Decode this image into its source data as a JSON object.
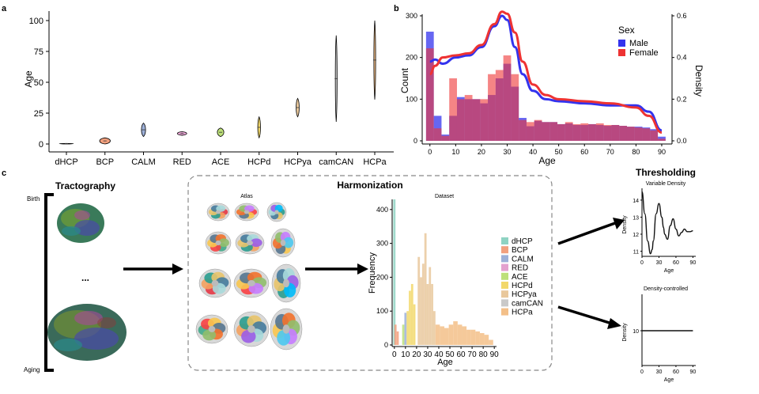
{
  "panels": {
    "a": {
      "label": "a",
      "chart_data": {
        "type": "violin",
        "ylabel": "Age",
        "ylim": [
          0,
          100
        ],
        "yticks": [
          0,
          25,
          50,
          75,
          100
        ],
        "categories": [
          "dHCP",
          "BCP",
          "CALM",
          "RED",
          "ACE",
          "HCPd",
          "HCPya",
          "camCAN",
          "HCPa"
        ],
        "ranges": [
          [
            0,
            0.5
          ],
          [
            0,
            5
          ],
          [
            6,
            17
          ],
          [
            7,
            10
          ],
          [
            6,
            13
          ],
          [
            5,
            22
          ],
          [
            22,
            37
          ],
          [
            18,
            88
          ],
          [
            36,
            100
          ]
        ],
        "colors": [
          "#8fd3c3",
          "#f2a07e",
          "#9db0d8",
          "#e3a1cf",
          "#bde07a",
          "#f2d86b",
          "#e9c89c",
          "#c9c9c9",
          "#f3bf88"
        ]
      }
    },
    "b": {
      "label": "b",
      "chart_data": {
        "type": "histogram+density",
        "xlabel": "Age",
        "ylabel": "Count",
        "ylabel_right": "Density",
        "xticks": [
          0,
          10,
          20,
          30,
          40,
          50,
          60,
          70,
          80,
          90
        ],
        "yticks_left": [
          0,
          100,
          200,
          300
        ],
        "yticks_right": [
          "0.0",
          "0.2",
          "0.4",
          "0.6"
        ],
        "xlim": [
          -3,
          94
        ],
        "ylim": [
          0,
          300
        ],
        "ylim_right": [
          0,
          0.6
        ],
        "legend_title": "Sex",
        "series": [
          {
            "name": "Male",
            "color": "#3333ee",
            "bins_x": [
              0,
              3,
              6,
              9,
              12,
              15,
              18,
              21,
              24,
              27,
              30,
              33,
              36,
              39,
              42,
              45,
              48,
              51,
              54,
              57,
              60,
              63,
              66,
              69,
              72,
              75,
              78,
              81,
              84,
              87,
              90
            ],
            "counts": [
              262,
              60,
              15,
              60,
              105,
              100,
              100,
              90,
              110,
              150,
              185,
              130,
              55,
              35,
              48,
              45,
              45,
              40,
              42,
              38,
              38,
              40,
              38,
              36,
              38,
              36,
              34,
              34,
              32,
              28,
              10
            ],
            "density_x": [
              0,
              2,
              5,
              10,
              15,
              20,
              25,
              28,
              30,
              33,
              36,
              40,
              45,
              50,
              60,
              70,
              80,
              85,
              90
            ],
            "density_y": [
              0.38,
              0.39,
              0.37,
              0.4,
              0.41,
              0.45,
              0.55,
              0.6,
              0.58,
              0.45,
              0.32,
              0.24,
              0.2,
              0.19,
              0.18,
              0.17,
              0.17,
              0.14,
              0.05
            ]
          },
          {
            "name": "Female",
            "color": "#ee3333",
            "bins_x": [
              0,
              3,
              6,
              9,
              12,
              15,
              18,
              21,
              24,
              27,
              30,
              33,
              36,
              39,
              42,
              45,
              48,
              51,
              54,
              57,
              60,
              63,
              66,
              69,
              72,
              75,
              78,
              81,
              84,
              87,
              90
            ],
            "counts": [
              222,
              30,
              12,
              150,
              100,
              110,
              100,
              100,
              160,
              170,
              205,
              160,
              50,
              45,
              50,
              45,
              45,
              40,
              45,
              40,
              42,
              40,
              42,
              38,
              38,
              36,
              34,
              32,
              30,
              25,
              5
            ],
            "density_x": [
              0,
              2,
              5,
              10,
              15,
              20,
              25,
              28,
              30,
              33,
              36,
              40,
              45,
              50,
              60,
              70,
              80,
              85,
              90
            ],
            "density_y": [
              0.32,
              0.36,
              0.4,
              0.41,
              0.42,
              0.46,
              0.56,
              0.62,
              0.61,
              0.52,
              0.38,
              0.27,
              0.22,
              0.2,
              0.19,
              0.18,
              0.16,
              0.12,
              0.04
            ]
          }
        ]
      }
    },
    "c": {
      "label": "c",
      "tractography_title": "Tractography",
      "birth_label": "Birth",
      "aging_label": "Aging",
      "ellipsis": "...",
      "harmonization_title": "Harmonization",
      "atlas_label": "Atlas",
      "dataset_chart": {
        "type": "histogram",
        "title": "Dataset",
        "xlabel": "Age",
        "ylabel": "Frequency",
        "xticks": [
          0,
          10,
          20,
          30,
          40,
          50,
          60,
          70,
          80,
          90
        ],
        "yticks": [
          0,
          100,
          200,
          300,
          400
        ],
        "xlim": [
          -2,
          92
        ],
        "ylim": [
          0,
          430
        ],
        "legend": [
          "dHCP",
          "BCP",
          "CALM",
          "RED",
          "ACE",
          "HCPd",
          "HCPya",
          "camCAN",
          "HCPa"
        ],
        "colors": [
          "#8fd3c3",
          "#f2a07e",
          "#9db0d8",
          "#e3a1cf",
          "#bde07a",
          "#f2d86b",
          "#e9c89c",
          "#c9c9c9",
          "#f3bf88"
        ],
        "bars": [
          {
            "group": 0,
            "x": 0,
            "h": 430
          },
          {
            "group": 1,
            "x": 1,
            "h": 60
          },
          {
            "group": 1,
            "x": 3,
            "h": 40
          },
          {
            "group": 4,
            "x": 8,
            "h": 60
          },
          {
            "group": 2,
            "x": 10,
            "h": 95
          },
          {
            "group": 5,
            "x": 12,
            "h": 100
          },
          {
            "group": 5,
            "x": 14,
            "h": 160
          },
          {
            "group": 5,
            "x": 16,
            "h": 180
          },
          {
            "group": 5,
            "x": 18,
            "h": 120
          },
          {
            "group": 6,
            "x": 22,
            "h": 260
          },
          {
            "group": 6,
            "x": 24,
            "h": 200
          },
          {
            "group": 6,
            "x": 26,
            "h": 240
          },
          {
            "group": 6,
            "x": 28,
            "h": 330
          },
          {
            "group": 6,
            "x": 30,
            "h": 180
          },
          {
            "group": 6,
            "x": 32,
            "h": 230
          },
          {
            "group": 6,
            "x": 34,
            "h": 180
          },
          {
            "group": 6,
            "x": 36,
            "h": 100
          },
          {
            "group": 8,
            "x": 38,
            "h": 60
          },
          {
            "group": 8,
            "x": 42,
            "h": 55
          },
          {
            "group": 8,
            "x": 46,
            "h": 50
          },
          {
            "group": 8,
            "x": 50,
            "h": 60
          },
          {
            "group": 8,
            "x": 54,
            "h": 70
          },
          {
            "group": 8,
            "x": 58,
            "h": 60
          },
          {
            "group": 8,
            "x": 62,
            "h": 55
          },
          {
            "group": 8,
            "x": 66,
            "h": 45
          },
          {
            "group": 8,
            "x": 70,
            "h": 45
          },
          {
            "group": 8,
            "x": 74,
            "h": 40
          },
          {
            "group": 8,
            "x": 78,
            "h": 35
          },
          {
            "group": 8,
            "x": 82,
            "h": 30
          },
          {
            "group": 8,
            "x": 86,
            "h": 15
          }
        ]
      },
      "thresholding_title": "Thresholding",
      "variable_density": {
        "type": "line",
        "title": "Variable Density",
        "xlabel": "Age",
        "ylabel": "Density",
        "xticks": [
          0,
          30,
          60,
          90
        ],
        "yticks": [
          11,
          12,
          13,
          14
        ],
        "xlim": [
          0,
          95
        ],
        "ylim": [
          10.7,
          14.6
        ],
        "x": [
          0,
          5,
          10,
          15,
          18,
          20,
          25,
          30,
          35,
          38,
          40,
          45,
          50,
          55,
          60,
          65,
          70,
          75,
          80,
          85,
          90
        ],
        "y": [
          14.5,
          13.2,
          11.6,
          10.85,
          11.1,
          11.6,
          13.2,
          13.8,
          13.0,
          12.4,
          12.0,
          11.7,
          12.5,
          12.9,
          12.3,
          11.9,
          12.1,
          12.3,
          12.15,
          12.15,
          12.2
        ]
      },
      "density_controlled": {
        "type": "line",
        "title": "Density-controlled",
        "xlabel": "Age",
        "ylabel": "Density",
        "xticks": [
          0,
          30,
          60,
          90
        ],
        "yticks": [
          10
        ],
        "xlim": [
          0,
          95
        ],
        "ylim": [
          7,
          13
        ],
        "x": [
          0,
          90
        ],
        "y": [
          10,
          10
        ]
      }
    }
  }
}
